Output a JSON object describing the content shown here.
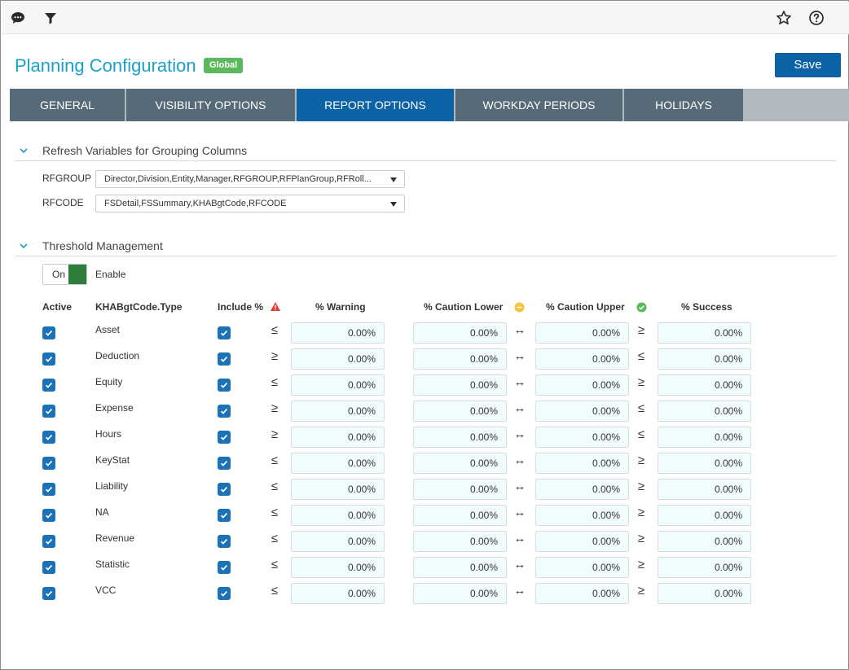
{
  "topbar": {
    "left_icons": [
      "comment-icon",
      "filter-icon"
    ],
    "right_icons": [
      "star-icon",
      "help-icon"
    ]
  },
  "header": {
    "title": "Planning Configuration",
    "badge": "Global",
    "save_label": "Save"
  },
  "tabs": [
    {
      "label": "GENERAL",
      "active": false
    },
    {
      "label": "VISIBILITY OPTIONS",
      "active": false
    },
    {
      "label": "REPORT OPTIONS",
      "active": true
    },
    {
      "label": "WORKDAY PERIODS",
      "active": false
    },
    {
      "label": "HOLIDAYS",
      "active": false
    }
  ],
  "refresh": {
    "title": "Refresh Variables for Grouping Columns",
    "fields": [
      {
        "label": "RFGROUP",
        "value": "Director,Division,Entity,Manager,RFGROUP,RFPlanGroup,RFRoll..."
      },
      {
        "label": "RFCODE",
        "value": "FSDetail,FSSummary,KHABgtCode,RFCODE"
      }
    ]
  },
  "threshold": {
    "title": "Threshold Management",
    "toggle_label": "On",
    "toggle_on": true,
    "enable_label": "Enable",
    "columns": {
      "active": "Active",
      "type": "KHABgtCode.Type",
      "include": "Include %",
      "warning": "% Warning",
      "caution_lower": "% Caution Lower",
      "caution_upper": "% Caution Upper",
      "success": "% Success"
    },
    "status_icons": {
      "warning": "warning-icon",
      "caution": "caution-icon",
      "success": "success-icon"
    },
    "colors": {
      "warning": "#e53935",
      "caution": "#f5c542",
      "success": "#5cb85c"
    },
    "rows": [
      {
        "type": "Asset",
        "active": true,
        "include": true,
        "warn_op": "≤",
        "between": "↔",
        "success_op": "≥",
        "warning": "0.00%",
        "caution_lower": "0.00%",
        "caution_upper": "0.00%",
        "success": "0.00%"
      },
      {
        "type": "Deduction",
        "active": true,
        "include": true,
        "warn_op": "≥",
        "between": "↔",
        "success_op": "≤",
        "warning": "0.00%",
        "caution_lower": "0.00%",
        "caution_upper": "0.00%",
        "success": "0.00%"
      },
      {
        "type": "Equity",
        "active": true,
        "include": true,
        "warn_op": "≤",
        "between": "↔",
        "success_op": "≥",
        "warning": "0.00%",
        "caution_lower": "0.00%",
        "caution_upper": "0.00%",
        "success": "0.00%"
      },
      {
        "type": "Expense",
        "active": true,
        "include": true,
        "warn_op": "≥",
        "between": "↔",
        "success_op": "≤",
        "warning": "0.00%",
        "caution_lower": "0.00%",
        "caution_upper": "0.00%",
        "success": "0.00%"
      },
      {
        "type": "Hours",
        "active": true,
        "include": true,
        "warn_op": "≥",
        "between": "↔",
        "success_op": "≤",
        "warning": "0.00%",
        "caution_lower": "0.00%",
        "caution_upper": "0.00%",
        "success": "0.00%"
      },
      {
        "type": "KeyStat",
        "active": true,
        "include": true,
        "warn_op": "≤",
        "between": "↔",
        "success_op": "≥",
        "warning": "0.00%",
        "caution_lower": "0.00%",
        "caution_upper": "0.00%",
        "success": "0.00%"
      },
      {
        "type": "Liability",
        "active": true,
        "include": true,
        "warn_op": "≤",
        "between": "↔",
        "success_op": "≥",
        "warning": "0.00%",
        "caution_lower": "0.00%",
        "caution_upper": "0.00%",
        "success": "0.00%"
      },
      {
        "type": "NA",
        "active": true,
        "include": true,
        "warn_op": "≤",
        "between": "↔",
        "success_op": "≥",
        "warning": "0.00%",
        "caution_lower": "0.00%",
        "caution_upper": "0.00%",
        "success": "0.00%"
      },
      {
        "type": "Revenue",
        "active": true,
        "include": true,
        "warn_op": "≤",
        "between": "↔",
        "success_op": "≥",
        "warning": "0.00%",
        "caution_lower": "0.00%",
        "caution_upper": "0.00%",
        "success": "0.00%"
      },
      {
        "type": "Statistic",
        "active": true,
        "include": true,
        "warn_op": "≤",
        "between": "↔",
        "success_op": "≥",
        "warning": "0.00%",
        "caution_lower": "0.00%",
        "caution_upper": "0.00%",
        "success": "0.00%"
      },
      {
        "type": "VCC",
        "active": true,
        "include": true,
        "warn_op": "≤",
        "between": "↔",
        "success_op": "≥",
        "warning": "0.00%",
        "caution_lower": "0.00%",
        "caution_upper": "0.00%",
        "success": "0.00%"
      }
    ]
  }
}
